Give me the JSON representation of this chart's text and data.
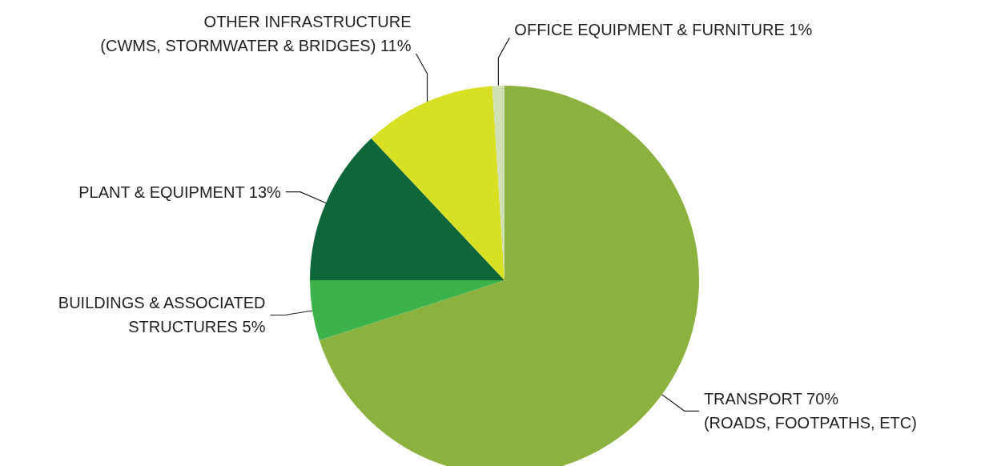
{
  "chart_data": {
    "type": "pie",
    "categories": [
      "TRANSPORT 70%\n(ROADS, FOOTPATHS, ETC)",
      "BUILDINGS & ASSOCIATED\nSTRUCTURES 5%",
      "PLANT & EQUIPMENT 13%",
      "OTHER INFRASTRUCTURE\n(CWMS, STORMWATER & BRIDGES) 11%",
      "OFFICE EQUIPMENT & FURNITURE 1%"
    ],
    "values": [
      70,
      5,
      13,
      11,
      1
    ],
    "colors": [
      "#8bb13f",
      "#3bb34a",
      "#0f6739",
      "#d7e022",
      "#d1e0b4"
    ]
  }
}
